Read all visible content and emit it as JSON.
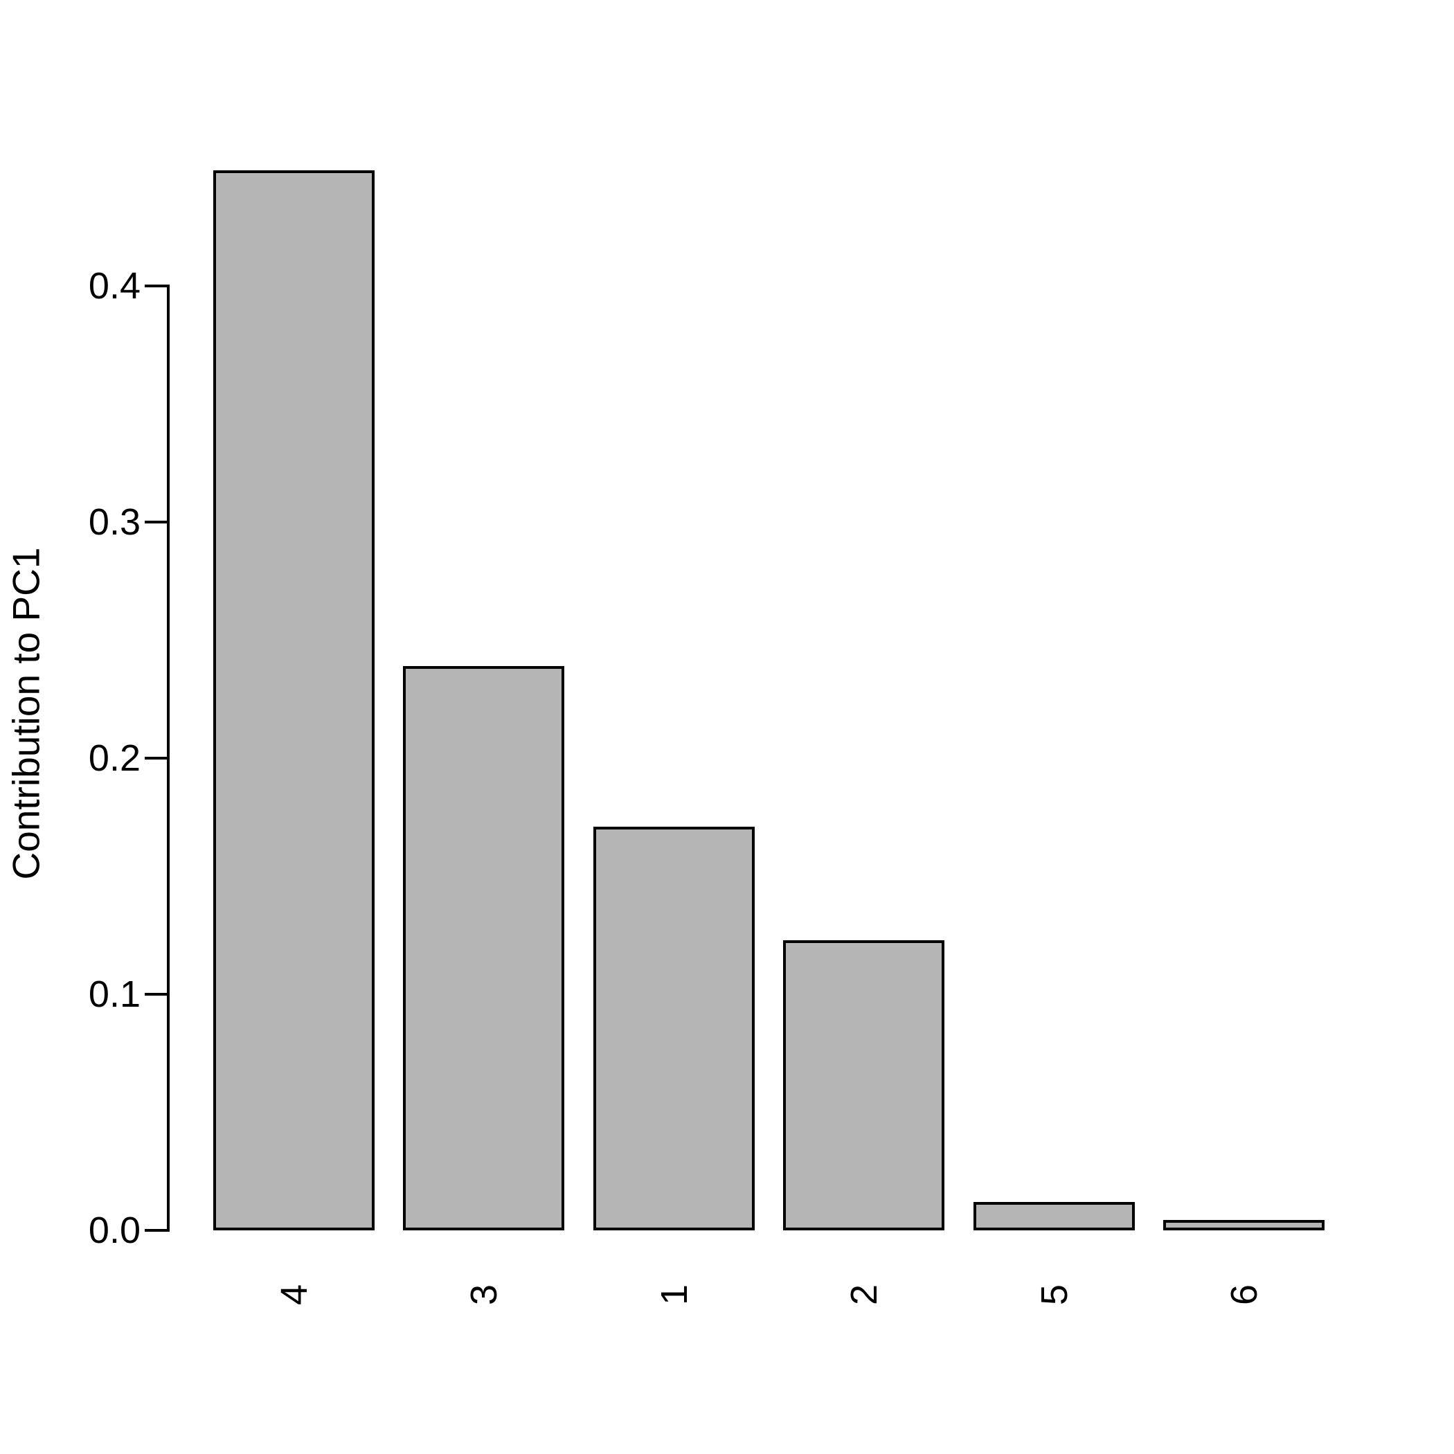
{
  "figure": {
    "background": "#ffffff",
    "axis_color": "#000000",
    "text_color": "#000000"
  },
  "chart_data": {
    "type": "bar",
    "title": "",
    "xlabel": "",
    "ylabel": "Contribution to PC1",
    "categories": [
      "4",
      "3",
      "1",
      "2",
      "5",
      "6"
    ],
    "values": [
      0.449,
      0.239,
      0.171,
      0.123,
      0.012,
      0.0045
    ],
    "ylim": [
      0,
      0.45
    ],
    "yticks": [
      0.0,
      0.1,
      0.2,
      0.3,
      0.4
    ],
    "ytick_labels": [
      "0.0",
      "0.1",
      "0.2",
      "0.3",
      "0.4"
    ],
    "grid": false,
    "legend": false,
    "bar_fill": "#b5b5b5",
    "bar_border": "#000000"
  }
}
